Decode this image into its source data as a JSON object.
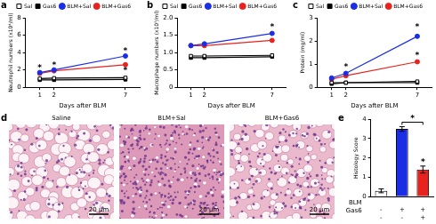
{
  "chart_data": [
    {
      "panel": "a",
      "type": "line",
      "x_label": "Days after BLM",
      "y_label": "Neutrophil numbers (x10⁴/ml)",
      "x": [
        1,
        2,
        7
      ],
      "xlim": [
        0,
        8
      ],
      "xticks": [
        1,
        2,
        7
      ],
      "ylim": [
        0,
        8
      ],
      "yticks": [
        0,
        2,
        4,
        6,
        8
      ],
      "grid": false,
      "legend": "top",
      "series": [
        {
          "name": "Sal",
          "color": "#000000",
          "marker": "square_open",
          "line_style": "solid",
          "values": [
            1.0,
            1.05,
            1.1
          ]
        },
        {
          "name": "Gas6",
          "color": "#000000",
          "marker": "square",
          "line_style": "solid",
          "values": [
            0.85,
            0.85,
            0.9
          ]
        },
        {
          "name": "BLM+Sal",
          "color": "#1a2ee6",
          "marker": "circle",
          "line_style": "solid",
          "values": [
            1.7,
            2.0,
            3.6
          ]
        },
        {
          "name": "BLM+Gas6",
          "color": "#e8231e",
          "marker": "circle",
          "line_style": "solid",
          "values": [
            1.6,
            1.9,
            2.6
          ]
        }
      ],
      "annotations": [
        {
          "x": 1,
          "y": 2.2,
          "text": "*"
        },
        {
          "x": 2,
          "y": 2.5,
          "text": "*"
        },
        {
          "x": 7,
          "y": 4.1,
          "text": "*"
        },
        {
          "x": 7,
          "y": 1.9,
          "text": "*"
        }
      ]
    },
    {
      "panel": "b",
      "type": "line",
      "x_label": "Days after BLM",
      "y_label": "Macrophage numbers (x10⁵/ml)",
      "x": [
        1,
        2,
        7
      ],
      "xlim": [
        0,
        8
      ],
      "xticks": [
        1,
        2,
        7
      ],
      "ylim": [
        0,
        2
      ],
      "yticks": [
        0,
        0.5,
        {
          "value": 1,
          "label": "1.0"
        },
        1.5,
        {
          "value": 2,
          "label": "2.0"
        }
      ],
      "grid": false,
      "legend": "top",
      "series": [
        {
          "name": "Sal",
          "color": "#000000",
          "marker": "square_open",
          "line_style": "solid",
          "values": [
            0.9,
            0.9,
            0.92
          ]
        },
        {
          "name": "Gas6",
          "color": "#000000",
          "marker": "square",
          "line_style": "solid",
          "values": [
            0.85,
            0.85,
            0.88
          ]
        },
        {
          "name": "BLM+Sal",
          "color": "#1a2ee6",
          "marker": "circle",
          "line_style": "solid",
          "values": [
            1.2,
            1.25,
            1.55
          ]
        },
        {
          "name": "BLM+Gas6",
          "color": "#e8231e",
          "marker": "circle",
          "line_style": "solid",
          "values": [
            1.2,
            1.2,
            1.35
          ]
        }
      ],
      "annotations": [
        {
          "x": 7,
          "y": 1.72,
          "text": "*"
        }
      ]
    },
    {
      "panel": "c",
      "type": "line",
      "x_label": "Days after BLM",
      "y_label": "Protein (mg/ml)",
      "x": [
        1,
        2,
        7
      ],
      "xlim": [
        0,
        8
      ],
      "xticks": [
        1,
        2,
        7
      ],
      "ylim": [
        0,
        3
      ],
      "yticks": [
        0,
        1,
        2,
        3
      ],
      "grid": false,
      "legend": "top",
      "series": [
        {
          "name": "Sal",
          "color": "#000000",
          "marker": "square_open",
          "line_style": "solid",
          "values": [
            0.2,
            0.2,
            0.25
          ]
        },
        {
          "name": "Gas6",
          "color": "#000000",
          "marker": "square",
          "line_style": "solid",
          "values": [
            0.15,
            0.2,
            0.2
          ]
        },
        {
          "name": "BLM+Sal",
          "color": "#1a2ee6",
          "marker": "circle",
          "line_style": "solid",
          "values": [
            0.4,
            0.6,
            2.2
          ]
        },
        {
          "name": "BLM+Gas6",
          "color": "#e8231e",
          "marker": "circle",
          "line_style": "solid",
          "values": [
            0.35,
            0.5,
            1.1
          ]
        }
      ],
      "annotations": [
        {
          "x": 2,
          "y": 0.85,
          "text": "*"
        },
        {
          "x": 7,
          "y": 2.6,
          "text": "*"
        },
        {
          "x": 7,
          "y": 1.35,
          "text": "*"
        }
      ]
    },
    {
      "panel": "e",
      "type": "bar",
      "y_label": "Histology Score",
      "categories": [
        null,
        null,
        null
      ],
      "factors": [
        {
          "name": "BLM",
          "levels": [
            "-",
            "+",
            "+"
          ]
        },
        {
          "name": "Gas6",
          "levels": [
            "-",
            "-",
            "+"
          ]
        }
      ],
      "values": [
        0.3,
        3.5,
        1.4
      ],
      "errors": [
        0.1,
        0.12,
        0.18
      ],
      "colors": [
        "#ffffff",
        "#1a2ee6",
        "#e8231e"
      ],
      "ylim": [
        0,
        4
      ],
      "yticks": [
        0,
        1,
        2,
        3,
        4
      ],
      "grid": false,
      "brackets": [
        {
          "from": 1,
          "to": 2,
          "y": 3.85,
          "text": "*"
        }
      ],
      "annotations": [
        {
          "x": 2,
          "y": 1.75,
          "text": "*"
        }
      ]
    }
  ],
  "image_panel": {
    "panel": "d",
    "images": [
      {
        "title": "Saline",
        "scale_bar": "20 μm"
      },
      {
        "title": "BLM+Sal",
        "scale_bar": "20 μm"
      },
      {
        "title": "BLM+Gas6",
        "scale_bar": "20 μm"
      }
    ]
  }
}
